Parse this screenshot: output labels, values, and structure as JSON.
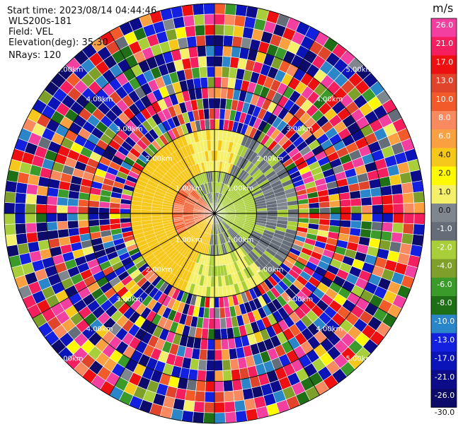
{
  "info": {
    "start_time": "Start time: 2023/08/14 04:44:46",
    "station": "WLS200s-181",
    "field": "Field: VEL",
    "elevation": "Elevation(deg): 35.30",
    "nrays": "NRays: 120"
  },
  "colorbar": {
    "unit": "m/s",
    "ticks": [
      "26.0",
      "21.0",
      "17.0",
      "13.0",
      "10.0",
      "8.0",
      "6.0",
      "4.0",
      "2.0",
      "1.0",
      "0.0",
      "-1.0",
      "-2.0",
      "-4.0",
      "-6.0",
      "-8.0",
      "-10.0",
      "-13.0",
      "-17.0",
      "-21.0",
      "-26.0",
      "-30.0"
    ],
    "colors": [
      "#f33fa0",
      "#f51f60",
      "#ee1010",
      "#e0452c",
      "#f25a2a",
      "#f98a60",
      "#fba040",
      "#f7c81c",
      "#fffa00",
      "#f4f06a",
      "#7e868e",
      "#656e78",
      "#a8cf3a",
      "#7ea02a",
      "#3a9a2a",
      "#1f6f16",
      "#2a86c8",
      "#1420e0",
      "#0a14b8",
      "#0c0c8a",
      "#0d0b6a"
    ]
  },
  "range_rings": {
    "labels": [
      "1.00km",
      "2.00km",
      "3.00km",
      "4.00km",
      "5.00km"
    ]
  },
  "chart_data": {
    "type": "heatmap",
    "title": "",
    "field": "VEL",
    "units": "m/s",
    "nrays": 120,
    "elevation_deg": 35.3,
    "max_range_km": 5,
    "range_rings_km": [
      1,
      2,
      3,
      4,
      5
    ],
    "color_scale": {
      "bounds": [
        -30.0,
        -26.0,
        -21.0,
        -17.0,
        -13.0,
        -10.0,
        -8.0,
        -6.0,
        -4.0,
        -2.0,
        -1.0,
        0.0,
        1.0,
        2.0,
        4.0,
        6.0,
        8.0,
        10.0,
        13.0,
        17.0,
        21.0,
        26.0
      ]
    },
    "range_bins_km": [
      0.25,
      0.5,
      0.75,
      1.0,
      1.25,
      1.5,
      1.75,
      2.0,
      2.25,
      2.5,
      2.75,
      3.0,
      3.25,
      3.5,
      3.75,
      4.0,
      4.25,
      4.5,
      4.75,
      5.0
    ],
    "approx_velocity_by_sector": [
      {
        "azimuth_deg": [
          0,
          90
        ],
        "inner_range_km": [
          0,
          1.0
        ],
        "velocity_ms": -3.0
      },
      {
        "azimuth_deg": [
          90,
          140
        ],
        "inner_range_km": [
          0,
          1.0
        ],
        "velocity_ms": -2.5
      },
      {
        "azimuth_deg": [
          140,
          200
        ],
        "inner_range_km": [
          0,
          1.0
        ],
        "velocity_ms": 0.5
      },
      {
        "azimuth_deg": [
          200,
          250
        ],
        "inner_range_km": [
          0,
          1.0
        ],
        "velocity_ms": 7.0
      },
      {
        "azimuth_deg": [
          250,
          320
        ],
        "inner_range_km": [
          0,
          1.0
        ],
        "velocity_ms": 2.5
      },
      {
        "azimuth_deg": [
          320,
          360
        ],
        "inner_range_km": [
          0,
          1.0
        ],
        "velocity_ms": -0.5
      },
      {
        "azimuth_deg": [
          0,
          360
        ],
        "inner_range_km": [
          1.0,
          2.1
        ],
        "velocity_ms": "mixed: yellow to west, green to east, gray north/south"
      },
      {
        "azimuth_deg": [
          0,
          360
        ],
        "inner_range_km": [
          2.1,
          5.0
        ],
        "velocity_ms": "noise (random across full scale)"
      }
    ]
  }
}
